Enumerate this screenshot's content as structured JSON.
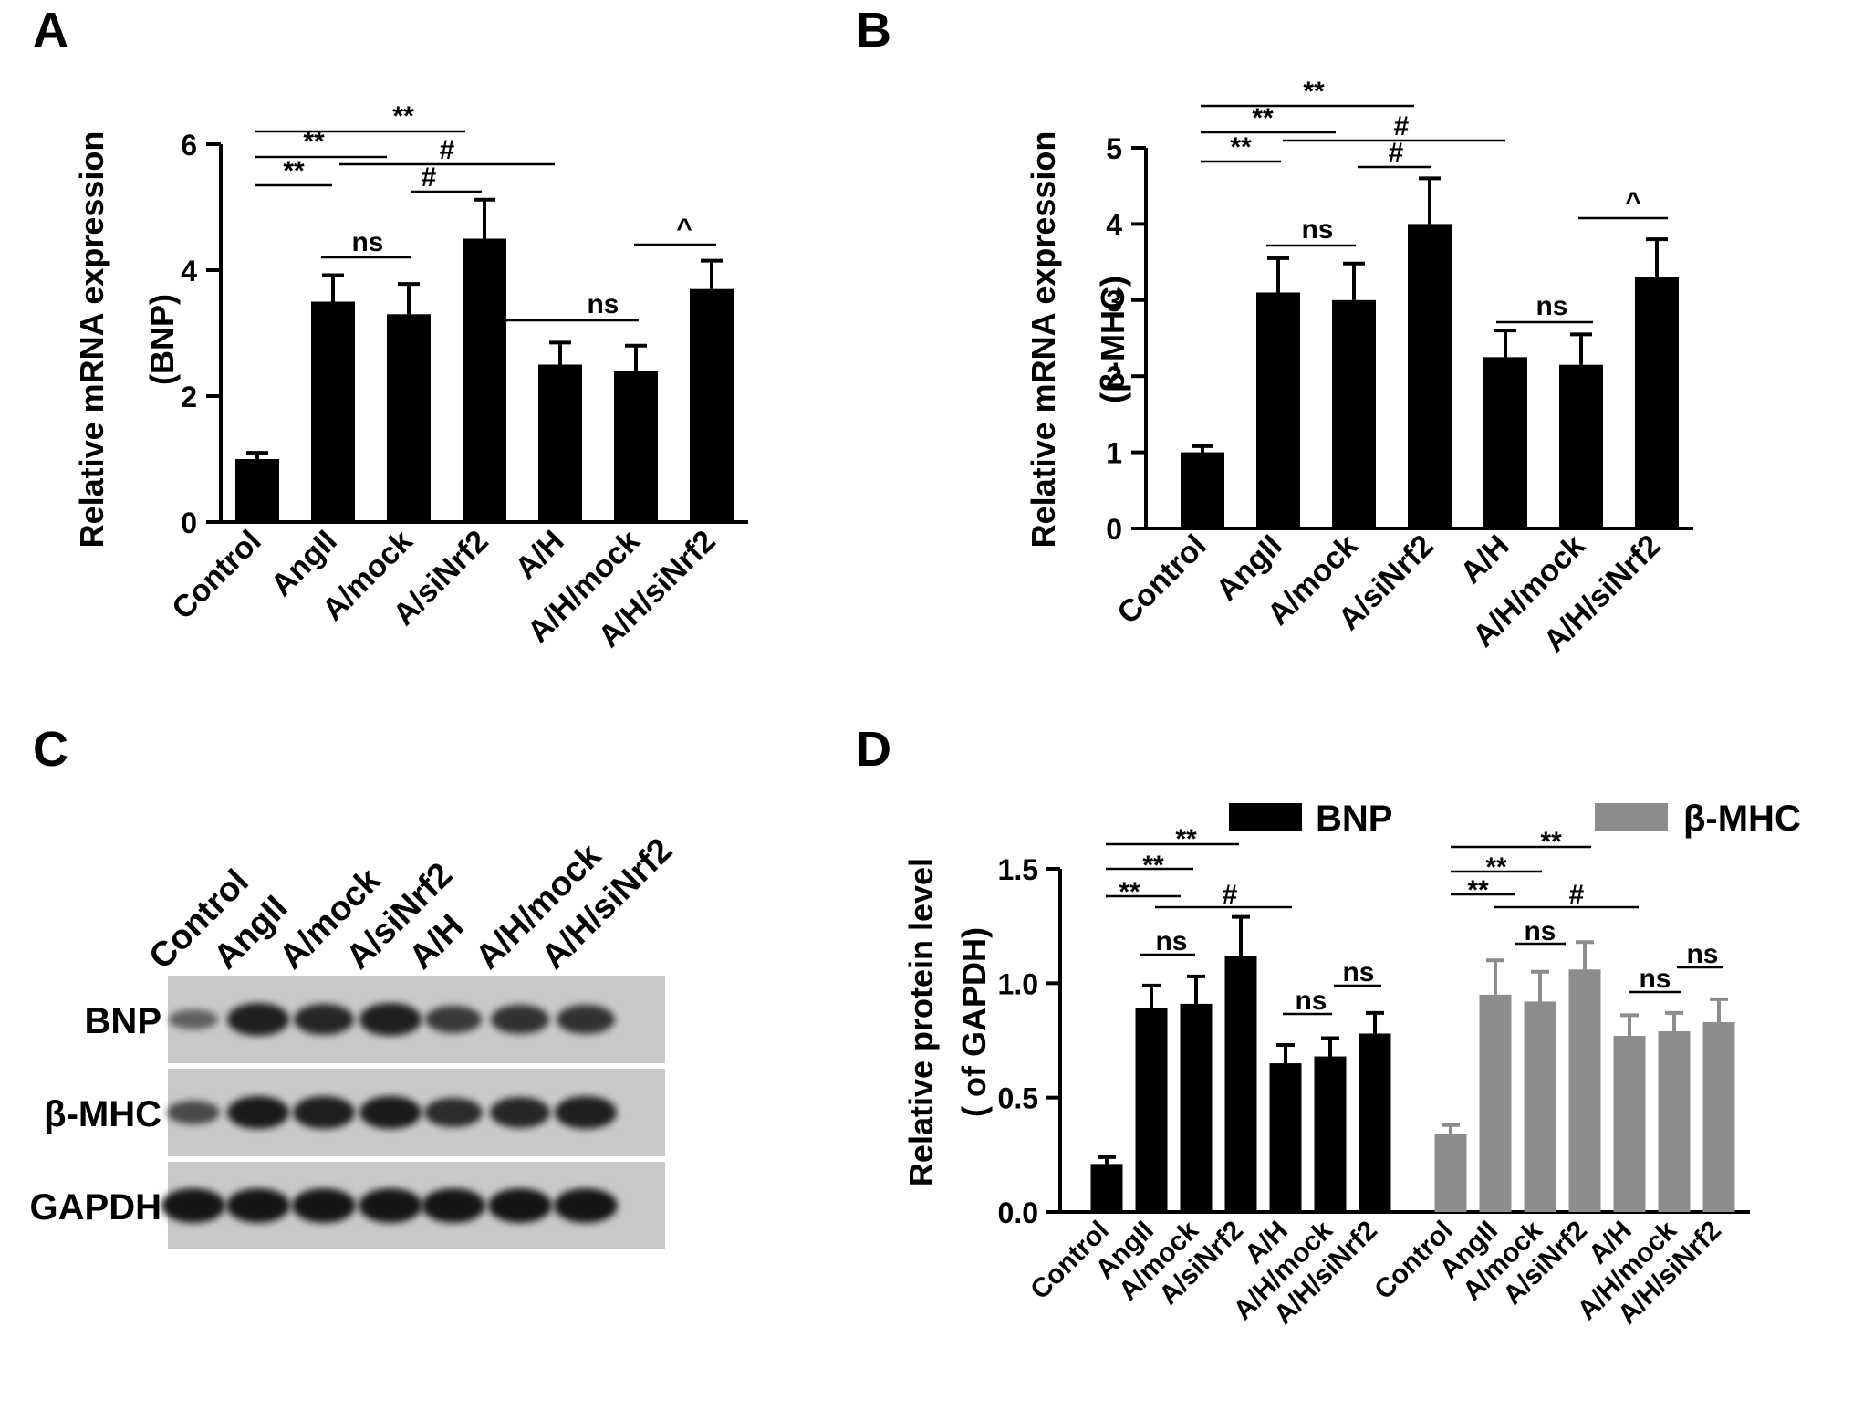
{
  "panels": {
    "a": {
      "letter": "A"
    },
    "b": {
      "letter": "B"
    },
    "c": {
      "letter": "C"
    },
    "d": {
      "letter": "D"
    }
  },
  "chart_data": [
    {
      "panel": "A",
      "type": "bar",
      "categories": [
        "Control",
        "AngII",
        "A/mock",
        "A/siNrf2",
        "A/H",
        "A/H/mock",
        "A/H/siNrf2"
      ],
      "values": [
        1.0,
        3.5,
        3.3,
        4.5,
        2.5,
        2.4,
        3.7
      ],
      "errors": [
        0.1,
        0.42,
        0.48,
        0.62,
        0.35,
        0.4,
        0.45
      ],
      "ylabel_line1": "Relative mRNA expression",
      "ylabel_line2": "(BNP)",
      "ylim": [
        0,
        6
      ],
      "yticks": [
        "0",
        "2",
        "4",
        "6"
      ],
      "color": "#000000",
      "significance": [
        {
          "label": "**"
        },
        {
          "label": "**"
        },
        {
          "label": "**"
        },
        {
          "label": "#"
        },
        {
          "label": "#"
        },
        {
          "label": "ns"
        },
        {
          "label": "ns"
        },
        {
          "label": "^"
        }
      ]
    },
    {
      "panel": "B",
      "type": "bar",
      "categories": [
        "Control",
        "AngII",
        "A/mock",
        "A/siNrf2",
        "A/H",
        "A/H/mock",
        "A/H/siNrf2"
      ],
      "values": [
        1.0,
        3.1,
        3.0,
        4.0,
        2.25,
        2.15,
        3.3
      ],
      "errors": [
        0.08,
        0.45,
        0.48,
        0.6,
        0.35,
        0.4,
        0.5
      ],
      "ylabel_line1": "Relative mRNA expression",
      "ylabel_line2": "(β-MHC)",
      "ylim": [
        0,
        5
      ],
      "yticks": [
        "0",
        "1",
        "2",
        "3",
        "4",
        "5"
      ],
      "color": "#000000",
      "significance": [
        {
          "label": "**"
        },
        {
          "label": "**"
        },
        {
          "label": "**"
        },
        {
          "label": "#"
        },
        {
          "label": "#"
        },
        {
          "label": "ns"
        },
        {
          "label": "ns"
        },
        {
          "label": "^"
        }
      ]
    },
    {
      "panel": "D",
      "type": "bar",
      "categories": [
        "Control",
        "AngII",
        "A/mock",
        "A/siNrf2",
        "A/H",
        "A/H/mock",
        "A/H/siNrf2"
      ],
      "series": [
        {
          "name": "BNP",
          "color": "#000000",
          "values": [
            0.21,
            0.89,
            0.91,
            1.12,
            0.65,
            0.68,
            0.78
          ],
          "errors": [
            0.03,
            0.1,
            0.12,
            0.17,
            0.08,
            0.08,
            0.09
          ]
        },
        {
          "name": "β-MHC",
          "color": "#8c8c8c",
          "values": [
            0.34,
            0.95,
            0.92,
            1.06,
            0.77,
            0.79,
            0.83
          ],
          "errors": [
            0.04,
            0.15,
            0.13,
            0.12,
            0.09,
            0.08,
            0.1
          ]
        }
      ],
      "ylabel_line1": "Relative protein level",
      "ylabel_line2": "( of GAPDH)",
      "ylim": [
        0,
        1.5
      ],
      "yticks": [
        "0.0",
        "0.5",
        "1.0",
        "1.5"
      ],
      "legend_position": "top",
      "significance": [
        {
          "label": "**"
        },
        {
          "label": "**"
        },
        {
          "label": "**"
        },
        {
          "label": "#"
        },
        {
          "label": "ns"
        },
        {
          "label": "ns"
        },
        {
          "label": "ns"
        },
        {
          "label": "**"
        },
        {
          "label": "**"
        },
        {
          "label": "**"
        },
        {
          "label": "#"
        },
        {
          "label": "ns"
        },
        {
          "label": "ns"
        },
        {
          "label": "ns"
        }
      ]
    }
  ],
  "western_blot": {
    "lanes": [
      "Control",
      "AngII",
      "A/mock",
      "A/siNrf2",
      "A/H",
      "A/H/mock",
      "A/H/siNrf2"
    ],
    "rows": [
      {
        "label": "BNP",
        "intensities": [
          0.35,
          0.9,
          0.85,
          0.9,
          0.7,
          0.75,
          0.75
        ]
      },
      {
        "label": "β-MHC",
        "intensities": [
          0.55,
          0.95,
          0.9,
          0.95,
          0.8,
          0.85,
          0.9
        ]
      },
      {
        "label": "GAPDH",
        "intensities": [
          1.0,
          1.0,
          1.0,
          1.0,
          1.0,
          1.0,
          1.0
        ]
      }
    ]
  }
}
